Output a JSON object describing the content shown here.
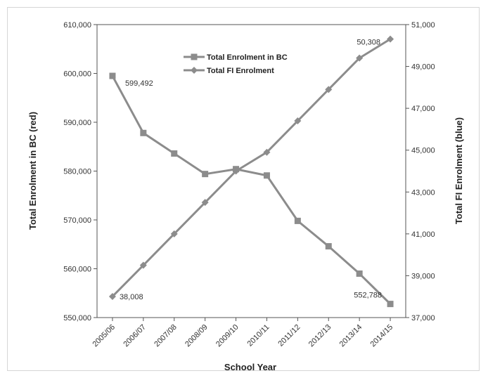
{
  "chart_data": {
    "type": "line",
    "categories": [
      "2005/06",
      "2006/07",
      "2007/08",
      "2008/09",
      "2009/10",
      "2010/11",
      "2011/12",
      "2012/13",
      "2013/14",
      "2014/15"
    ],
    "series": [
      {
        "name": "Total Enrolment in BC",
        "axis": "left",
        "marker": "square",
        "color": "#8c8c8c",
        "values": [
          599492,
          587800,
          583600,
          579400,
          580400,
          579100,
          569800,
          564600,
          559000,
          552788
        ]
      },
      {
        "name": "Total FI Enrolment",
        "axis": "right",
        "marker": "diamond",
        "color": "#8c8c8c",
        "values": [
          38008,
          39500,
          41000,
          42500,
          44000,
          44900,
          46400,
          47900,
          49400,
          50308
        ]
      }
    ],
    "xlabel": "School Year",
    "ylabel": "Total Enrolment in BC (red)",
    "y2label": "Total FI Enrolment (blue)",
    "ylim": [
      550000,
      610000
    ],
    "y2lim": [
      37000,
      51000
    ],
    "yticks": [
      "550,000",
      "560,000",
      "570,000",
      "580,000",
      "590,000",
      "600,000",
      "610,000"
    ],
    "y2ticks": [
      "37,000",
      "39,000",
      "41,000",
      "43,000",
      "45,000",
      "47,000",
      "49,000",
      "51,000"
    ],
    "grid": false,
    "legend_position": "top-center",
    "annotations": [
      {
        "text": "599,492",
        "series": 0,
        "index": 0
      },
      {
        "text": "38,008",
        "series": 1,
        "index": 0
      },
      {
        "text": "552,788",
        "series": 0,
        "index": 9
      },
      {
        "text": "50,308",
        "series": 1,
        "index": 9
      }
    ]
  }
}
